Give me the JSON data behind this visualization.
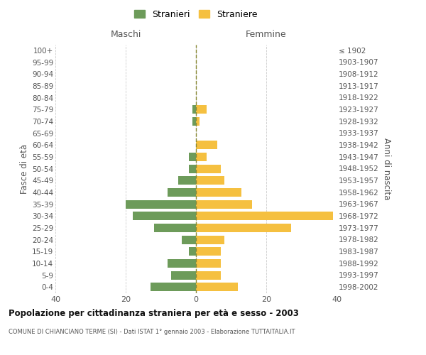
{
  "age_groups": [
    "0-4",
    "5-9",
    "10-14",
    "15-19",
    "20-24",
    "25-29",
    "30-34",
    "35-39",
    "40-44",
    "45-49",
    "50-54",
    "55-59",
    "60-64",
    "65-69",
    "70-74",
    "75-79",
    "80-84",
    "85-89",
    "90-94",
    "95-99",
    "100+"
  ],
  "birth_years": [
    "1998-2002",
    "1993-1997",
    "1988-1992",
    "1983-1987",
    "1978-1982",
    "1973-1977",
    "1968-1972",
    "1963-1967",
    "1958-1962",
    "1953-1957",
    "1948-1952",
    "1943-1947",
    "1938-1942",
    "1933-1937",
    "1928-1932",
    "1923-1927",
    "1918-1922",
    "1913-1917",
    "1908-1912",
    "1903-1907",
    "≤ 1902"
  ],
  "maschi": [
    13,
    7,
    8,
    2,
    4,
    12,
    18,
    20,
    8,
    5,
    2,
    2,
    0,
    0,
    1,
    1,
    0,
    0,
    0,
    0,
    0
  ],
  "femmine": [
    12,
    7,
    7,
    7,
    8,
    27,
    39,
    16,
    13,
    8,
    7,
    3,
    6,
    0,
    1,
    3,
    0,
    0,
    0,
    0,
    0
  ],
  "maschi_color": "#6d9b5a",
  "femmine_color": "#f5c040",
  "grid_color": "#cccccc",
  "title": "Popolazione per cittadinanza straniera per età e sesso - 2003",
  "subtitle": "COMUNE DI CHIANCIANO TERME (SI) - Dati ISTAT 1° gennaio 2003 - Elaborazione TUTTAITALIA.IT",
  "ylabel_left": "Fasce di età",
  "ylabel_right": "Anni di nascita",
  "label_maschi": "Maschi",
  "label_femmine": "Femmine",
  "legend_maschi": "Stranieri",
  "legend_femmine": "Straniere",
  "xlim": 40,
  "bar_height": 0.72
}
